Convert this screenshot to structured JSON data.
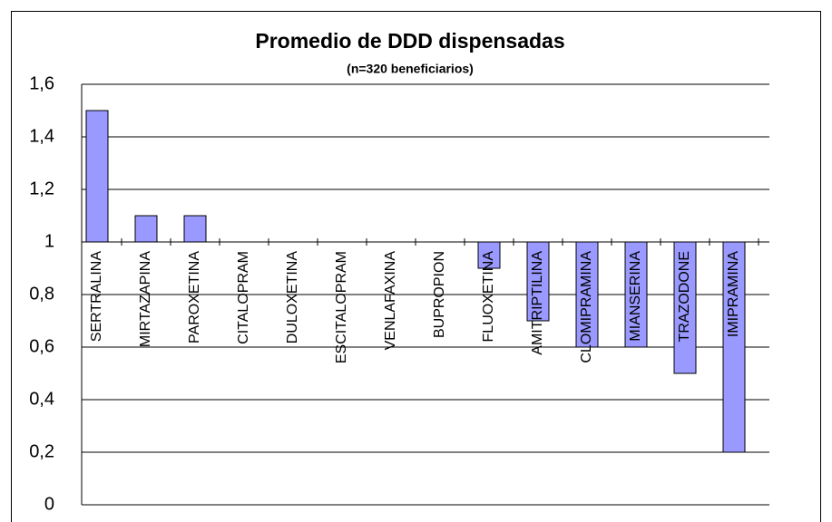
{
  "chart_data": {
    "type": "bar",
    "title": "Promedio de DDD dispensadas",
    "subtitle": "(n=320 beneficiarios)",
    "categories": [
      "SERTRALINA",
      "MIRTAZAPINA",
      "PAROXETINA",
      "CITALOPRAM",
      "DULOXETINA",
      "ESCITALOPRAM",
      "VENLAFAXINA",
      "BUPROPION",
      "FLUOXETINA",
      "AMITRIPTILINA",
      "CLOMIPRAMINA",
      "MIANSERINA",
      "TRAZODONE",
      "IMIPRAMINA"
    ],
    "values": [
      1.5,
      1.1,
      1.1,
      1,
      1,
      1,
      1,
      1,
      0.9,
      0.7,
      0.6,
      0.6,
      0.5,
      0.2
    ],
    "baseline": 1,
    "color": "#9999ff",
    "ylim": [
      0,
      1.6
    ],
    "yticks": [
      0,
      {
        "value": 0.2,
        "label": "0,2"
      },
      {
        "value": 0.4,
        "label": "0,4"
      },
      {
        "value": 0.6,
        "label": "0,6"
      },
      {
        "value": 0.8,
        "label": "0,8"
      },
      1,
      {
        "value": 1.2,
        "label": "1,2"
      },
      {
        "value": 1.4,
        "label": "1,4"
      },
      {
        "value": 1.6,
        "label": "1,6"
      }
    ],
    "grid": true
  }
}
